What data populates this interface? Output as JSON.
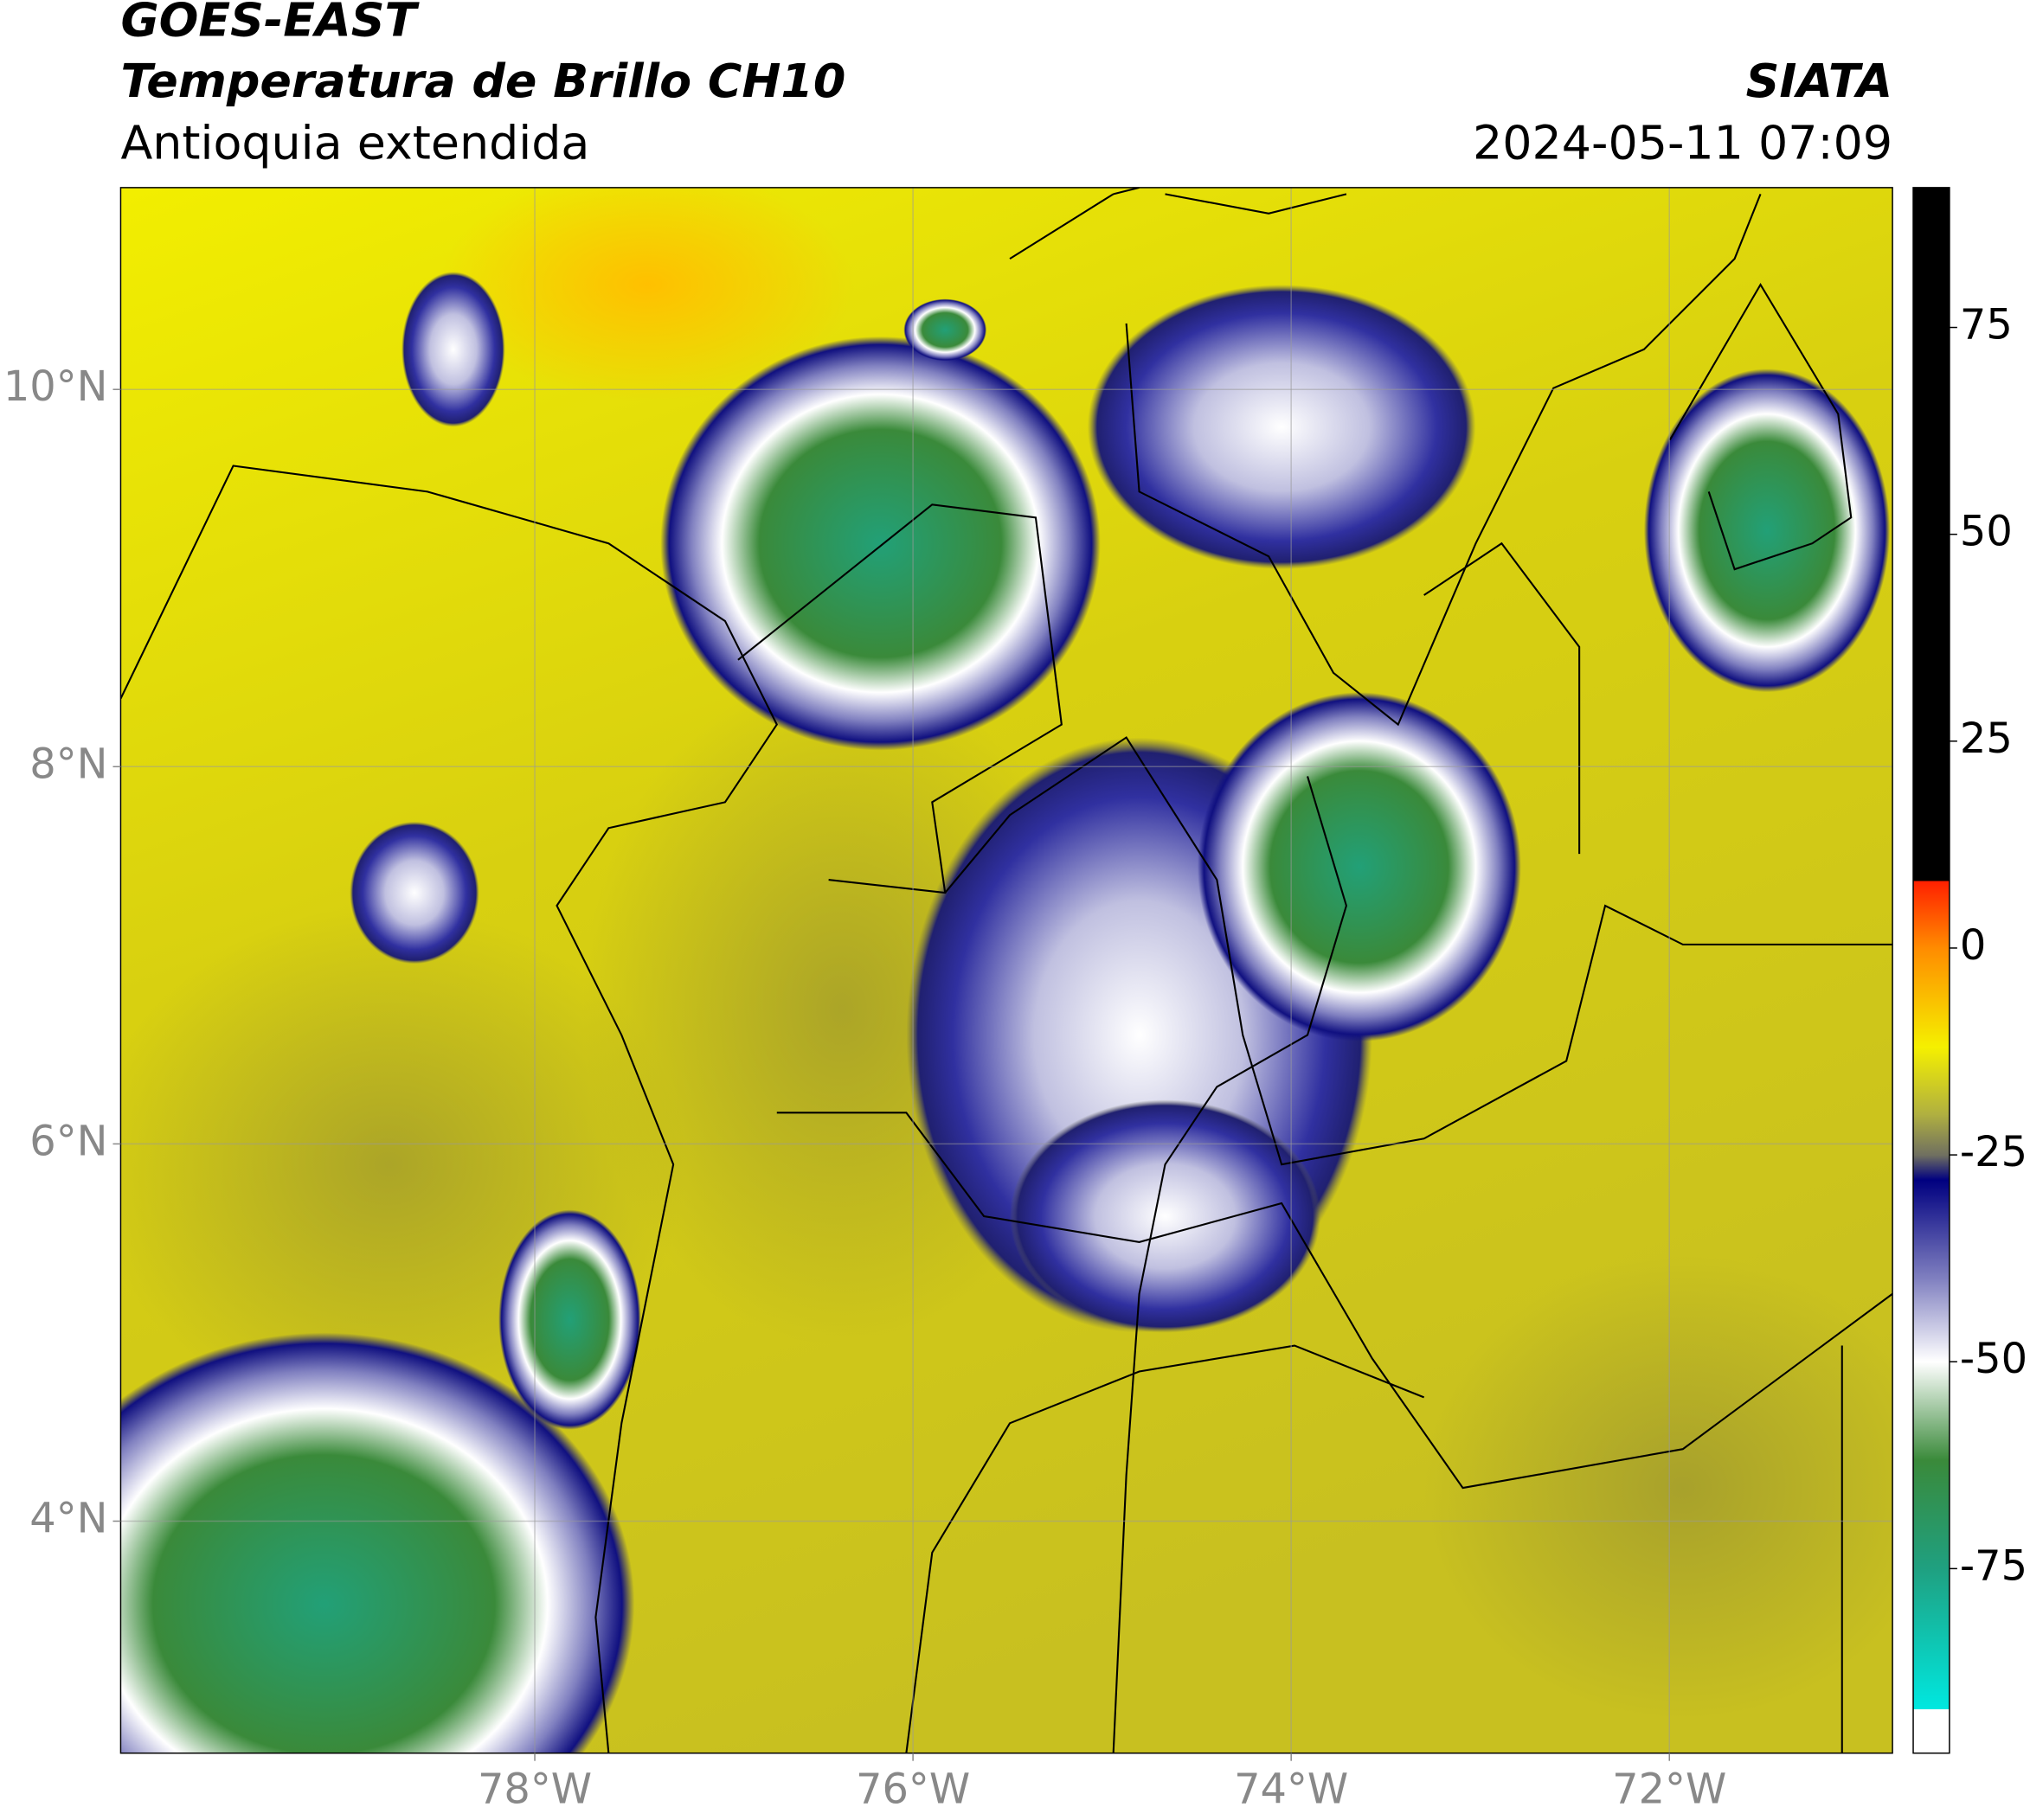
{
  "header": {
    "title": "GOES-EAST",
    "subtitle": "Temperatura de Brillo CH10",
    "region": "Antioquia extendida",
    "source": "SIATA",
    "datetime": "2024-05-11 07:09"
  },
  "chart_data": {
    "type": "map",
    "xlim": [
      -80.19,
      -70.82
    ],
    "ylim": [
      2.77,
      11.07
    ],
    "xticks": [
      {
        "value": -78,
        "label": "78°W"
      },
      {
        "value": -76,
        "label": "76°W"
      },
      {
        "value": -74,
        "label": "74°W"
      },
      {
        "value": -72,
        "label": "72°W"
      }
    ],
    "yticks": [
      {
        "value": 10,
        "label": "10°N"
      },
      {
        "value": 8,
        "label": "8°N"
      },
      {
        "value": 6,
        "label": "6°N"
      },
      {
        "value": 4,
        "label": "4°N"
      }
    ],
    "grid": true,
    "colorbar": {
      "lim": [
        -97.3,
        91.9
      ],
      "ticks": [
        75,
        50,
        25,
        0,
        -25,
        -50,
        -75
      ]
    }
  }
}
